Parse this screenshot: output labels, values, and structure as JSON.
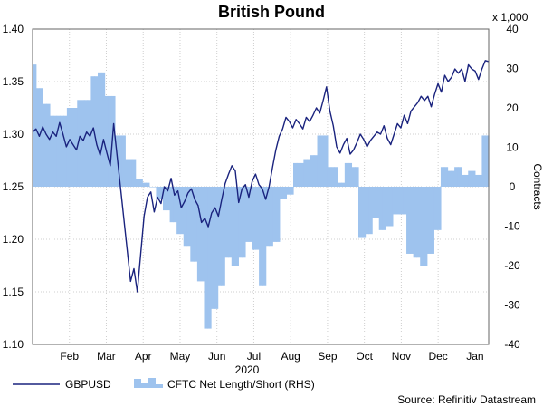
{
  "chart_data": {
    "type": "line+bar",
    "title": "British Pound",
    "year_label": "2020",
    "left_axis": {
      "ylim": [
        1.1,
        1.4
      ],
      "ticks": [
        "1.10",
        "1.15",
        "1.20",
        "1.25",
        "1.30",
        "1.35",
        "1.40"
      ]
    },
    "right_axis": {
      "label": "Contracts",
      "multiplier_label": "x 1,000",
      "ylim": [
        -40,
        40
      ],
      "ticks": [
        "-40",
        "-30",
        "-20",
        "-10",
        "0",
        "10",
        "20",
        "30",
        "40"
      ]
    },
    "x_axis": {
      "ticks": [
        "Feb",
        "Mar",
        "Apr",
        "May",
        "Jun",
        "Jul",
        "Aug",
        "Sep",
        "Oct",
        "Nov",
        "Dec",
        "Jan"
      ]
    },
    "grid": true,
    "legend": {
      "placement": "bottom-left",
      "items": [
        "GBPUSD",
        "CFTC Net Length/Short (RHS)"
      ]
    },
    "source": "Source: Refinitiv Datastream",
    "colors": {
      "line": "#1a237e",
      "bars": "#9ec3ee",
      "grid": "#cfcfcf"
    },
    "series": [
      {
        "name": "GBPUSD",
        "type": "line",
        "points": [
          [
            0,
            1.302
          ],
          [
            1,
            1.305
          ],
          [
            2,
            1.298
          ],
          [
            3,
            1.307
          ],
          [
            4,
            1.3
          ],
          [
            5,
            1.295
          ],
          [
            6,
            1.302
          ],
          [
            7,
            1.298
          ],
          [
            8,
            1.311
          ],
          [
            9,
            1.3
          ],
          [
            10,
            1.288
          ],
          [
            11,
            1.295
          ],
          [
            12,
            1.29
          ],
          [
            13,
            1.285
          ],
          [
            14,
            1.298
          ],
          [
            15,
            1.294
          ],
          [
            16,
            1.302
          ],
          [
            17,
            1.298
          ],
          [
            18,
            1.306
          ],
          [
            19,
            1.29
          ],
          [
            20,
            1.28
          ],
          [
            21,
            1.295
          ],
          [
            22,
            1.282
          ],
          [
            23,
            1.27
          ],
          [
            24,
            1.31
          ],
          [
            25,
            1.28
          ],
          [
            26,
            1.25
          ],
          [
            27,
            1.22
          ],
          [
            28,
            1.19
          ],
          [
            29,
            1.16
          ],
          [
            30,
            1.172
          ],
          [
            31,
            1.15
          ],
          [
            32,
            1.186
          ],
          [
            33,
            1.222
          ],
          [
            34,
            1.24
          ],
          [
            35,
            1.245
          ],
          [
            36,
            1.226
          ],
          [
            37,
            1.24
          ],
          [
            38,
            1.234
          ],
          [
            39,
            1.25
          ],
          [
            40,
            1.246
          ],
          [
            41,
            1.258
          ],
          [
            42,
            1.242
          ],
          [
            43,
            1.246
          ],
          [
            44,
            1.23
          ],
          [
            45,
            1.236
          ],
          [
            46,
            1.244
          ],
          [
            47,
            1.248
          ],
          [
            48,
            1.238
          ],
          [
            49,
            1.232
          ],
          [
            50,
            1.216
          ],
          [
            51,
            1.22
          ],
          [
            52,
            1.212
          ],
          [
            53,
            1.225
          ],
          [
            54,
            1.23
          ],
          [
            55,
            1.222
          ],
          [
            56,
            1.238
          ],
          [
            57,
            1.253
          ],
          [
            58,
            1.262
          ],
          [
            59,
            1.27
          ],
          [
            60,
            1.265
          ],
          [
            61,
            1.235
          ],
          [
            62,
            1.248
          ],
          [
            63,
            1.252
          ],
          [
            64,
            1.24
          ],
          [
            65,
            1.255
          ],
          [
            66,
            1.262
          ],
          [
            67,
            1.252
          ],
          [
            68,
            1.248
          ],
          [
            69,
            1.238
          ],
          [
            70,
            1.25
          ],
          [
            71,
            1.268
          ],
          [
            72,
            1.285
          ],
          [
            73,
            1.298
          ],
          [
            74,
            1.305
          ],
          [
            75,
            1.316
          ],
          [
            76,
            1.312
          ],
          [
            77,
            1.306
          ],
          [
            78,
            1.314
          ],
          [
            79,
            1.31
          ],
          [
            80,
            1.305
          ],
          [
            81,
            1.316
          ],
          [
            82,
            1.312
          ],
          [
            83,
            1.318
          ],
          [
            84,
            1.325
          ],
          [
            85,
            1.32
          ],
          [
            86,
            1.332
          ],
          [
            87,
            1.345
          ],
          [
            88,
            1.322
          ],
          [
            89,
            1.308
          ],
          [
            90,
            1.288
          ],
          [
            91,
            1.282
          ],
          [
            92,
            1.29
          ],
          [
            93,
            1.296
          ],
          [
            94,
            1.281
          ],
          [
            95,
            1.285
          ],
          [
            96,
            1.292
          ],
          [
            97,
            1.3
          ],
          [
            98,
            1.295
          ],
          [
            99,
            1.288
          ],
          [
            100,
            1.294
          ],
          [
            101,
            1.298
          ],
          [
            102,
            1.302
          ],
          [
            103,
            1.3
          ],
          [
            104,
            1.308
          ],
          [
            105,
            1.296
          ],
          [
            106,
            1.29
          ],
          [
            107,
            1.3
          ],
          [
            108,
            1.31
          ],
          [
            109,
            1.306
          ],
          [
            110,
            1.318
          ],
          [
            111,
            1.31
          ],
          [
            112,
            1.322
          ],
          [
            113,
            1.326
          ],
          [
            114,
            1.33
          ],
          [
            115,
            1.336
          ],
          [
            116,
            1.332
          ],
          [
            117,
            1.336
          ],
          [
            118,
            1.326
          ],
          [
            119,
            1.338
          ],
          [
            120,
            1.348
          ],
          [
            121,
            1.34
          ],
          [
            122,
            1.356
          ],
          [
            123,
            1.35
          ],
          [
            124,
            1.354
          ],
          [
            125,
            1.362
          ],
          [
            126,
            1.358
          ],
          [
            127,
            1.362
          ],
          [
            128,
            1.35
          ],
          [
            129,
            1.366
          ],
          [
            130,
            1.362
          ],
          [
            131,
            1.36
          ],
          [
            132,
            1.352
          ],
          [
            133,
            1.362
          ],
          [
            134,
            1.37
          ],
          [
            135,
            1.369
          ]
        ]
      },
      {
        "name": "CFTC Net Length/Short (RHS)",
        "type": "bar",
        "values": [
          31,
          25,
          25,
          21,
          21,
          18,
          18,
          18,
          18,
          18,
          20,
          20,
          20,
          22,
          22,
          22,
          22,
          28,
          28,
          29,
          29,
          23,
          23,
          23,
          13,
          13,
          13,
          7,
          7,
          7,
          2,
          2,
          1,
          1,
          0,
          0,
          -3,
          -3,
          -6,
          -6,
          -9,
          -9,
          -12,
          -12,
          -15,
          -15,
          -19,
          -19,
          -24,
          -24,
          -36,
          -36,
          -31,
          -31,
          -25,
          -25,
          -18,
          -18,
          -20,
          -20,
          -18,
          -18,
          -14,
          -14,
          -16,
          -16,
          -25,
          -25,
          -15,
          -15,
          -14,
          -14,
          -3,
          -3,
          -2,
          -2,
          6,
          6,
          6,
          7,
          7,
          8,
          8,
          13,
          13,
          13,
          5,
          5,
          5,
          1,
          1,
          6,
          6,
          5,
          5,
          -13,
          -13,
          -12,
          -12,
          -8,
          -8,
          -11,
          -11,
          -10,
          -10,
          -7,
          -7,
          -7,
          -7,
          -17,
          -17,
          -18,
          -18,
          -20,
          -20,
          -17,
          -17,
          -11,
          -11,
          5,
          5,
          4,
          4,
          5,
          5,
          3,
          3,
          4,
          4,
          3,
          3,
          13,
          13
        ]
      }
    ]
  }
}
